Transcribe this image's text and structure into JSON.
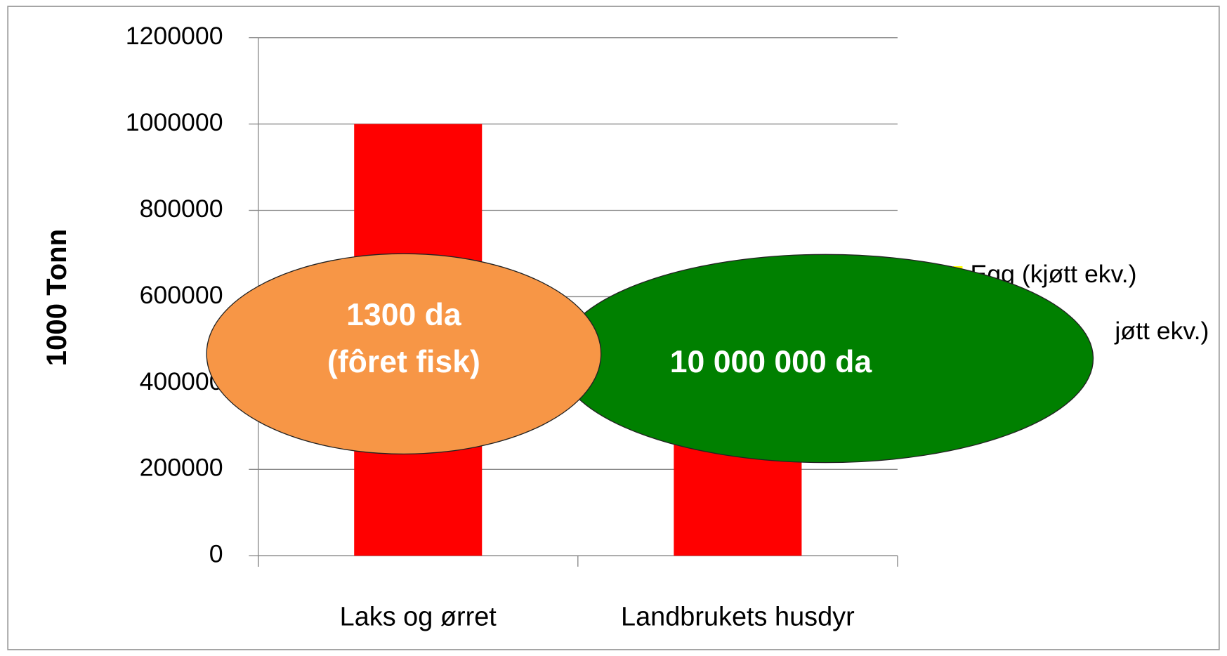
{
  "chart_data": {
    "type": "bar",
    "y_label": "1000 Tonn",
    "categories": [
      "Laks og ørret",
      "Landbrukets husdyr"
    ],
    "values": [
      1000000,
      500000
    ],
    "color": "#ff0000",
    "ylim": [
      0,
      1200000
    ],
    "yticks": [
      0,
      200000,
      400000,
      600000,
      800000,
      1000000,
      1200000
    ],
    "grid": true,
    "legend": [
      {
        "name": "Egg (kjøtt ekv.)",
        "color": "#ffff00"
      },
      {
        "name": "jøtt ekv.)"
      }
    ],
    "annotations": [
      {
        "lines": [
          "1300 da",
          "(fôret fisk)"
        ],
        "color": "#f79646"
      },
      {
        "lines": [
          "10 000 000 da"
        ],
        "color": "#008000"
      }
    ]
  }
}
